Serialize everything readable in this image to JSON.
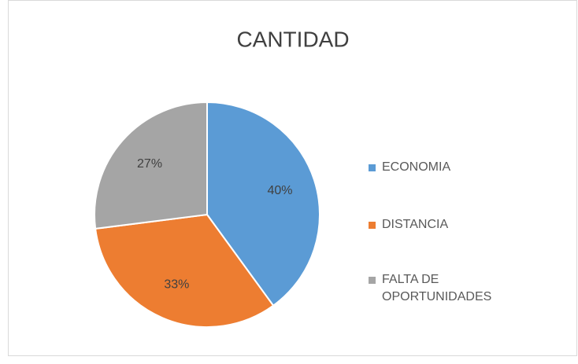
{
  "chart_data": {
    "type": "pie",
    "title": "CANTIDAD",
    "categories": [
      "ECONOMIA",
      "DISTANCIA",
      "FALTA DE OPORTUNIDADES"
    ],
    "values": [
      40,
      33,
      27
    ],
    "value_labels": [
      "40%",
      "33%",
      "27%"
    ],
    "colors": [
      "#5b9bd5",
      "#ed7d31",
      "#a5a5a5"
    ],
    "legend": "right"
  }
}
